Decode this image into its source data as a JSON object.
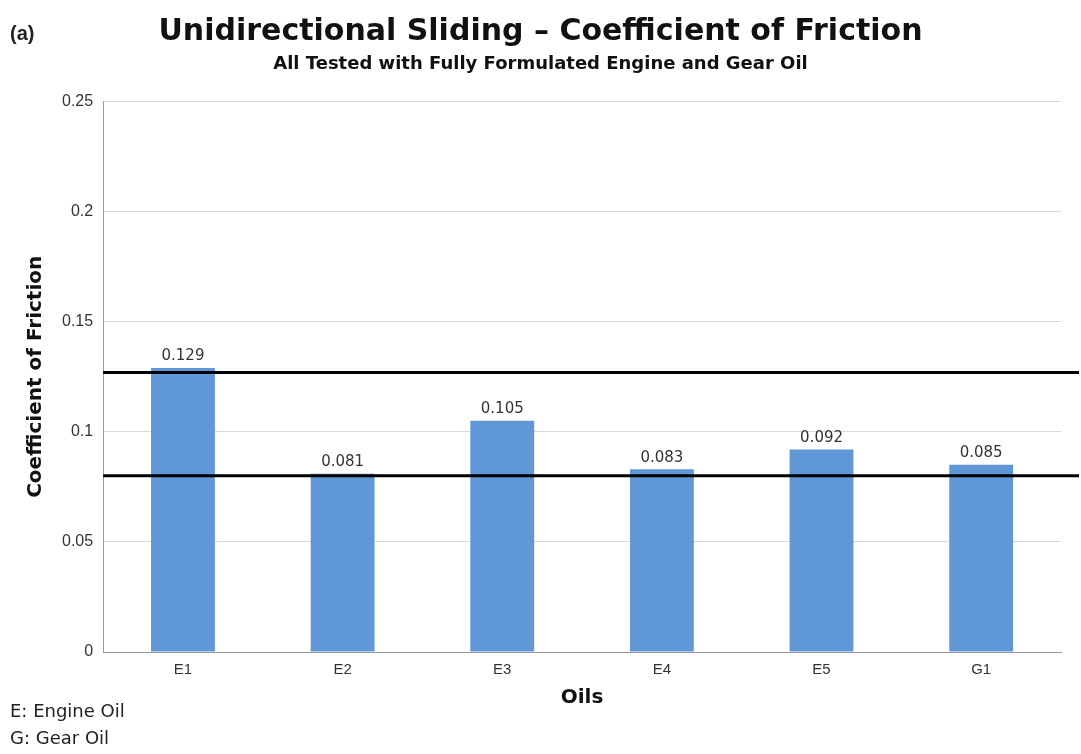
{
  "chart_data": {
    "type": "bar",
    "title": "Unidirectional Sliding – Coefficient of Friction",
    "subtitle": "All Tested with Fully Formulated Engine and Gear Oil",
    "xlabel": "Oils",
    "ylabel": "Coefficient of Friction",
    "categories": [
      "E1",
      "E2",
      "E3",
      "E4",
      "E5",
      "G1"
    ],
    "values": [
      0.129,
      0.081,
      0.105,
      0.083,
      0.092,
      0.085
    ],
    "color": "#6097d6",
    "ylim": [
      0,
      0.25
    ],
    "yticks": [
      0,
      0.05,
      0.1,
      0.15,
      0.2,
      0.25
    ],
    "grid": "y",
    "legend": false,
    "data_labels": true,
    "ref_lines": [
      {
        "axis": "y",
        "value": 0.127,
        "color": "#000000"
      },
      {
        "axis": "y",
        "value": 0.08,
        "color": "#000000"
      }
    ],
    "annotations": [
      "(a)",
      "E: Engine Oil",
      "G: Gear Oil"
    ]
  }
}
